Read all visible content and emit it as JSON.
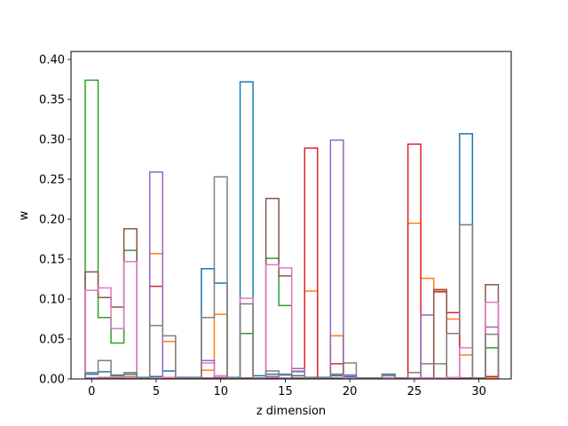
{
  "chart_data": {
    "type": "step",
    "xlabel": "z dimension",
    "ylabel": "w",
    "xlim": [
      -1.6,
      32.5
    ],
    "ylim": [
      0,
      0.41
    ],
    "x_ticks": [
      0,
      5,
      10,
      15,
      20,
      25,
      30
    ],
    "x_tick_labels": [
      "0",
      "5",
      "10",
      "15",
      "20",
      "25",
      "30"
    ],
    "y_ticks": [
      0,
      0.05,
      0.1,
      0.15,
      0.2,
      0.25,
      0.3,
      0.35,
      0.4
    ],
    "y_tick_labels": [
      "0.00",
      "0.05",
      "0.10",
      "0.15",
      "0.20",
      "0.25",
      "0.30",
      "0.35",
      "0.40"
    ],
    "grid": false,
    "series": [
      {
        "color": "#1f77b4",
        "values": [
          0.006,
          0.009,
          0.004,
          0.006,
          0.002,
          0.003,
          0.01,
          0.002,
          0.002,
          0.138,
          0.12,
          0.002,
          0.372,
          0.004,
          0.006,
          0.005,
          0.004,
          0.002,
          0.002,
          0.004,
          0.003,
          0.001,
          0.001,
          0.006,
          0.001,
          0.001,
          0.001,
          0.001,
          0.001,
          0.307,
          0.001,
          0.001
        ]
      },
      {
        "color": "#ff7f0e",
        "values": [
          0.001,
          0.002,
          0.002,
          0.003,
          0.001,
          0.157,
          0.047,
          0.001,
          0.001,
          0.011,
          0.081,
          0.001,
          0.001,
          0.001,
          0.001,
          0.001,
          0.001,
          0.11,
          0.001,
          0.054,
          0.001,
          0.001,
          0.001,
          0.001,
          0.001,
          0.195,
          0.126,
          0.11,
          0.075,
          0.03,
          0.001,
          0.001
        ]
      },
      {
        "color": "#2ca02c",
        "values": [
          0.374,
          0.077,
          0.045,
          0.161,
          0.001,
          0.001,
          0.001,
          0.001,
          0.001,
          0.001,
          0.001,
          0.001,
          0.057,
          0.001,
          0.151,
          0.092,
          0.001,
          0.001,
          0.001,
          0.001,
          0.001,
          0.001,
          0.001,
          0.001,
          0.001,
          0.001,
          0.001,
          0.001,
          0.001,
          0.001,
          0.001,
          0.039
        ]
      },
      {
        "color": "#d62728",
        "values": [
          0.001,
          0.001,
          0.001,
          0.001,
          0.001,
          0.116,
          0.001,
          0.001,
          0.001,
          0.001,
          0.001,
          0.001,
          0.001,
          0.001,
          0.001,
          0.001,
          0.001,
          0.289,
          0.001,
          0.019,
          0.001,
          0.001,
          0.001,
          0.001,
          0.001,
          0.294,
          0.001,
          0.109,
          0.083,
          0.001,
          0.001,
          0.003
        ]
      },
      {
        "color": "#9467bd",
        "values": [
          0.001,
          0.001,
          0.001,
          0.001,
          0.001,
          0.259,
          0.002,
          0.001,
          0.001,
          0.023,
          0.002,
          0.001,
          0.001,
          0.001,
          0.003,
          0.001,
          0.013,
          0.001,
          0.001,
          0.299,
          0.005,
          0.001,
          0.001,
          0.001,
          0.001,
          0.001,
          0.08,
          0.001,
          0.001,
          0.001,
          0.001,
          0.065
        ]
      },
      {
        "color": "#8c564b",
        "values": [
          0.134,
          0.102,
          0.09,
          0.188,
          0.001,
          0.001,
          0.001,
          0.001,
          0.001,
          0.001,
          0.001,
          0.001,
          0.001,
          0.001,
          0.226,
          0.129,
          0.001,
          0.001,
          0.001,
          0.001,
          0.001,
          0.001,
          0.001,
          0.001,
          0.001,
          0.001,
          0.001,
          0.112,
          0.001,
          0.001,
          0.001,
          0.118
        ]
      },
      {
        "color": "#e377c2",
        "values": [
          0.111,
          0.114,
          0.063,
          0.147,
          0.001,
          0.001,
          0.002,
          0.001,
          0.001,
          0.02,
          0.004,
          0.001,
          0.101,
          0.001,
          0.143,
          0.139,
          0.01,
          0.001,
          0.001,
          0.006,
          0.001,
          0.001,
          0.001,
          0.001,
          0.001,
          0.001,
          0.001,
          0.001,
          0.002,
          0.039,
          0.001,
          0.096
        ]
      },
      {
        "color": "#7f7f7f",
        "values": [
          0.008,
          0.023,
          0.005,
          0.008,
          0.001,
          0.067,
          0.054,
          0.001,
          0.001,
          0.077,
          0.253,
          0.001,
          0.094,
          0.001,
          0.01,
          0.006,
          0.009,
          0.001,
          0.001,
          0.006,
          0.02,
          0.001,
          0.001,
          0.004,
          0.001,
          0.008,
          0.019,
          0.019,
          0.057,
          0.193,
          0.001,
          0.056
        ]
      }
    ]
  }
}
